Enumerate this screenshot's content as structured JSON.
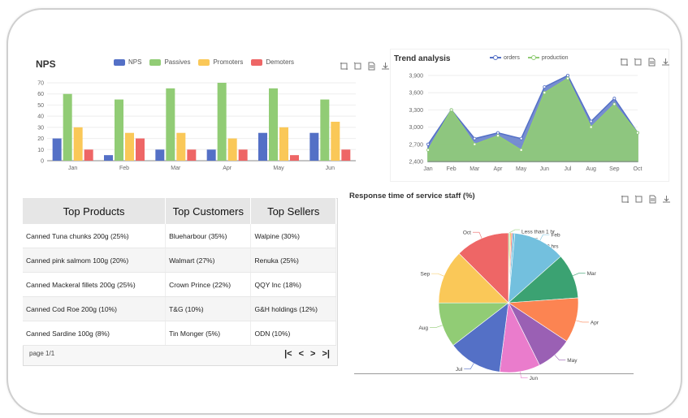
{
  "colors": {
    "nps": "#5470c6",
    "passives": "#91cc75",
    "promoters": "#fac858",
    "demoters": "#ee6666",
    "orders": "#5470c6",
    "production": "#91cc75"
  },
  "icons": [
    "crop-icon",
    "restore-icon",
    "data-view-icon",
    "download-icon"
  ],
  "nps": {
    "title": "NPS",
    "chart_data": {
      "type": "bar",
      "categories": [
        "Jan",
        "Feb",
        "Mar",
        "Apr",
        "May",
        "Jun"
      ],
      "series": [
        {
          "name": "NPS",
          "values": [
            20,
            5,
            10,
            10,
            25,
            25
          ]
        },
        {
          "name": "Passives",
          "values": [
            60,
            55,
            65,
            70,
            65,
            55
          ]
        },
        {
          "name": "Promoters",
          "values": [
            30,
            25,
            25,
            20,
            30,
            35
          ]
        },
        {
          "name": "Demoters",
          "values": [
            10,
            20,
            10,
            10,
            5,
            10
          ]
        }
      ],
      "yticks": [
        "0",
        "10",
        "20",
        "30",
        "40",
        "50",
        "60",
        "70"
      ],
      "ylim": [
        0,
        70
      ],
      "legend": "top"
    }
  },
  "trend": {
    "title": "Trend analysis",
    "chart_data": {
      "type": "area",
      "categories": [
        "Jan",
        "Feb",
        "Mar",
        "Apr",
        "May",
        "Jun",
        "Jul",
        "Aug",
        "Sep",
        "Oct"
      ],
      "series": [
        {
          "name": "orders",
          "values": [
            2700,
            3300,
            2800,
            2900,
            2800,
            3700,
            3900,
            3100,
            3500,
            2900
          ]
        },
        {
          "name": "production",
          "values": [
            2600,
            3300,
            2700,
            2850,
            2600,
            3600,
            3850,
            3000,
            3400,
            2900
          ]
        }
      ],
      "yticks": [
        "2,400",
        "2,700",
        "3,000",
        "3,300",
        "3,600",
        "3,900"
      ],
      "ylim": [
        2400,
        3900
      ],
      "legend": "top"
    }
  },
  "table": {
    "headers": [
      "Top Products",
      "Top Customers",
      "Top Sellers"
    ],
    "rows": [
      [
        "Canned Tuna chunks 200g (25%)",
        "Blueharbour (35%)",
        "Walpine (30%)"
      ],
      [
        "Canned pink salmom 100g (20%)",
        "Walmart (27%)",
        "Renuka (25%)"
      ],
      [
        "Canned Mackeral fillets 200g (25%)",
        "Crown Prince (22%)",
        "QQY Inc (18%)"
      ],
      [
        "Canned Cod Roe 200g (10%)",
        "T&G (10%)",
        "G&H holdings (12%)"
      ],
      [
        "Canned Sardine 100g (8%)",
        "Tin Monger (5%)",
        "ODN (10%)"
      ]
    ],
    "page_label": "page 1/1",
    "pager": {
      "first": "|<",
      "prev": "<",
      "next": ">",
      "last": ">|"
    }
  },
  "response": {
    "title": "Response time of service staff  (%)",
    "chart_data": {
      "type": "pie",
      "slices": [
        {
          "name": "Less than 1 hr",
          "value": 0.3,
          "color": "#91cc75"
        },
        {
          "name": "1-2 hrs",
          "value": 0.3,
          "color": "#fac858"
        },
        {
          "name": "More than 2 hrs",
          "value": 0.3,
          "color": "#ee6666"
        },
        {
          "name": "Jan",
          "value": 0.5,
          "color": "#73c0de"
        },
        {
          "name": "Feb",
          "value": 11.5,
          "color": "#73c0de"
        },
        {
          "name": "Mar",
          "value": 10,
          "color": "#3ba272"
        },
        {
          "name": "Apr",
          "value": 10,
          "color": "#fc8452"
        },
        {
          "name": "May",
          "value": 8,
          "color": "#9a60b4"
        },
        {
          "name": "Jun",
          "value": 9,
          "color": "#ea7ccc"
        },
        {
          "name": "Jul",
          "value": 12,
          "color": "#5470c6"
        },
        {
          "name": "Aug",
          "value": 10,
          "color": "#91cc75"
        },
        {
          "name": "Sep",
          "value": 12,
          "color": "#fac858"
        },
        {
          "name": "Oct",
          "value": 12,
          "color": "#ee6666"
        }
      ]
    }
  }
}
